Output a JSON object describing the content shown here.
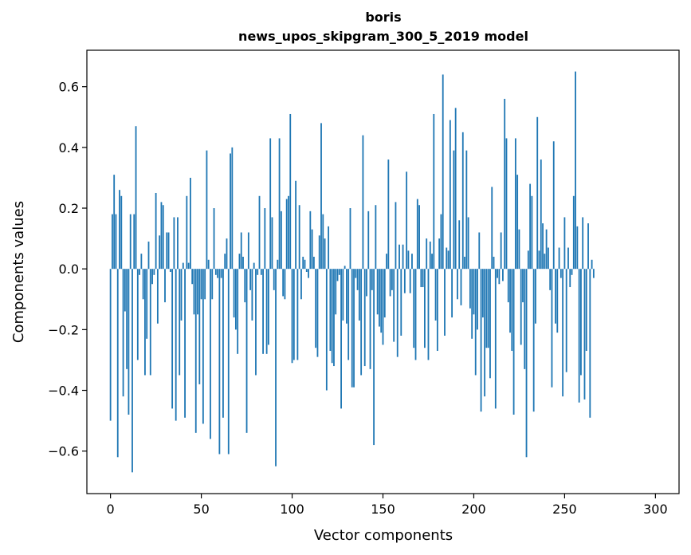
{
  "chart_data": {
    "type": "bar",
    "title": "boris",
    "subtitle": "news_upos_skipgram_300_5_2019 model",
    "xlabel": "Vector components",
    "ylabel": "Components values",
    "xlim": [
      -13,
      313
    ],
    "ylim": [
      -0.74,
      0.72
    ],
    "xticks": [
      0,
      50,
      100,
      150,
      200,
      250,
      300
    ],
    "yticks": [
      -0.6,
      -0.4,
      -0.2,
      0.0,
      0.2,
      0.4,
      0.6
    ],
    "ytick_labels": [
      "−0.6",
      "−0.4",
      "−0.2",
      "0.0",
      "0.2",
      "0.4",
      "0.6"
    ],
    "bar_color": "#1f77b4",
    "grid": false,
    "legend": "none",
    "values": [
      -0.5,
      0.18,
      0.31,
      0.18,
      -0.62,
      0.26,
      0.24,
      -0.42,
      -0.14,
      -0.33,
      -0.48,
      0.18,
      -0.67,
      0.18,
      0.47,
      -0.3,
      -0.02,
      0.05,
      -0.1,
      -0.35,
      -0.23,
      0.09,
      -0.35,
      -0.05,
      -0.02,
      0.25,
      -0.18,
      0.11,
      0.22,
      0.21,
      -0.11,
      0.12,
      0.12,
      -0.01,
      -0.46,
      0.17,
      -0.5,
      0.17,
      -0.35,
      -0.17,
      0.02,
      -0.49,
      0.24,
      0.02,
      0.3,
      -0.05,
      -0.15,
      -0.54,
      -0.15,
      -0.38,
      -0.1,
      -0.51,
      -0.1,
      0.39,
      0.03,
      -0.56,
      -0.1,
      0.2,
      -0.02,
      -0.03,
      -0.61,
      -0.03,
      -0.49,
      0.05,
      0.1,
      -0.61,
      0.38,
      0.4,
      -0.16,
      -0.2,
      -0.28,
      0.05,
      0.12,
      0.04,
      -0.11,
      -0.54,
      0.12,
      -0.07,
      -0.17,
      0.02,
      -0.35,
      -0.02,
      0.24,
      -0.02,
      -0.28,
      0.2,
      -0.28,
      -0.25,
      0.43,
      0.17,
      -0.07,
      -0.65,
      0.03,
      0.43,
      0.19,
      -0.09,
      -0.1,
      0.23,
      0.24,
      0.51,
      -0.31,
      -0.3,
      0.29,
      -0.3,
      0.21,
      -0.1,
      0.04,
      0.03,
      -0.01,
      -0.03,
      0.19,
      0.13,
      0.04,
      -0.26,
      -0.29,
      0.11,
      0.48,
      0.18,
      0.1,
      -0.4,
      0.14,
      -0.27,
      -0.31,
      -0.32,
      -0.15,
      -0.04,
      -0.02,
      -0.46,
      -0.17,
      0.01,
      -0.18,
      -0.3,
      0.2,
      -0.39,
      -0.39,
      -0.03,
      -0.07,
      -0.17,
      -0.35,
      0.44,
      -0.32,
      -0.09,
      0.19,
      -0.33,
      -0.07,
      -0.58,
      0.21,
      -0.15,
      -0.19,
      -0.21,
      -0.25,
      -0.16,
      0.05,
      0.36,
      -0.09,
      -0.07,
      -0.24,
      0.22,
      -0.29,
      0.08,
      -0.22,
      0.08,
      -0.08,
      0.32,
      0.06,
      -0.08,
      0.05,
      -0.26,
      -0.3,
      0.23,
      0.21,
      -0.06,
      -0.06,
      -0.26,
      0.1,
      -0.3,
      0.09,
      0.05,
      0.51,
      -0.17,
      -0.27,
      0.1,
      0.18,
      0.64,
      -0.22,
      0.07,
      0.06,
      0.49,
      -0.16,
      0.39,
      0.53,
      -0.1,
      0.16,
      -0.12,
      0.45,
      0.04,
      0.39,
      0.17,
      -0.13,
      -0.23,
      -0.15,
      -0.35,
      -0.2,
      0.12,
      -0.47,
      -0.16,
      -0.42,
      -0.26,
      -0.26,
      -0.36,
      0.27,
      0.04,
      -0.46,
      -0.03,
      -0.05,
      0.12,
      -0.04,
      0.56,
      0.43,
      -0.11,
      -0.21,
      -0.27,
      -0.48,
      0.43,
      0.31,
      0.13,
      -0.25,
      -0.11,
      -0.33,
      -0.62,
      0.06,
      0.28,
      0.24,
      -0.47,
      -0.18,
      0.5,
      0.06,
      0.36,
      0.15,
      0.05,
      0.13,
      0.07,
      -0.07,
      -0.39,
      0.42,
      -0.18,
      -0.21,
      0.07,
      -0.03,
      -0.42,
      0.17,
      -0.34,
      0.07,
      -0.06,
      -0.02,
      0.24,
      0.65,
      0.14,
      -0.44,
      -0.35,
      0.17,
      -0.43,
      -0.27,
      0.15,
      -0.49,
      0.03,
      -0.03
    ]
  }
}
